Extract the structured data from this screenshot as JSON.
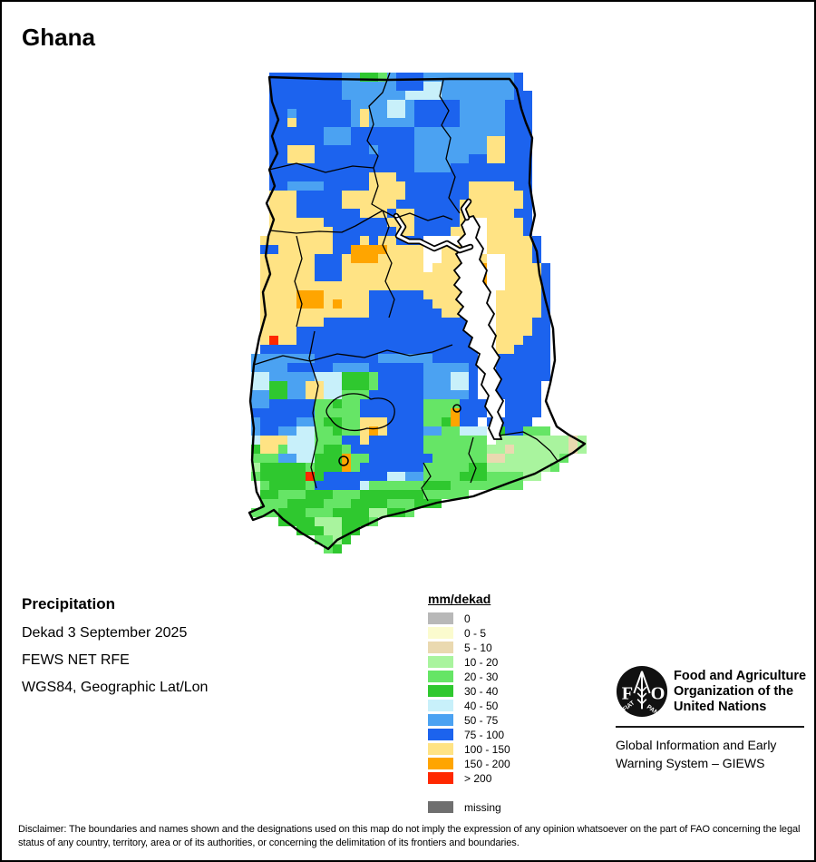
{
  "title": "Ghana",
  "info": {
    "heading": "Precipitation",
    "lines": [
      "Dekad 3 September 2025",
      "FEWS NET RFE",
      "WGS84, Geographic Lat/Lon"
    ]
  },
  "legend": {
    "title": "mm/dekad",
    "items": [
      {
        "label": "0",
        "color": "#b8b8b8"
      },
      {
        "label": "0 - 5",
        "color": "#fbfbce"
      },
      {
        "label": "5 - 10",
        "color": "#ead9b0"
      },
      {
        "label": "10 - 20",
        "color": "#a9f49e"
      },
      {
        "label": "20 - 30",
        "color": "#66e566"
      },
      {
        "label": "30 - 40",
        "color": "#2fc82f"
      },
      {
        "label": "40 - 50",
        "color": "#c8f0fa"
      },
      {
        "label": "50 - 75",
        "color": "#4ba2f2"
      },
      {
        "label": "75 - 100",
        "color": "#1c63ee"
      },
      {
        "label": "100 - 150",
        "color": "#ffe384"
      },
      {
        "label": "150 - 200",
        "color": "#ffa500"
      },
      {
        "label": "> 200",
        "color": "#ff2800"
      }
    ],
    "missing": {
      "label": "missing",
      "color": "#6f6f6f"
    }
  },
  "fao": {
    "logo_letters": [
      "F",
      "O"
    ],
    "logo_motto": [
      "FIAT",
      "PANIS"
    ],
    "org_lines": [
      "Food and Agriculture",
      "Organization of the",
      "United Nations"
    ],
    "giews_lines": [
      "Global Information and Early",
      "Warning System – GIEWS"
    ]
  },
  "disclaimer": "Disclaimer: The boundaries and names shown and the designations used on this map do not imply the expression of any opinion whatsoever on the part of FAO concerning the legal status of any country, territory, area or of its authorities, or concerning the delimitation of its frontiers and boundaries.",
  "map": {
    "region": "Ghana precipitation raster (mm/dekad)",
    "grid": {
      "cell": 10,
      "cols": 38,
      "rows": [
        "...BBBBBBBBLLGGMLBBBLLLLLLLLLLB.......",
        "...BBBBBBBBLLLLLLBBBCCLLLLLLLLB.......",
        "...BBBBBBBBLLLLLLLCCCCLLLLLLLLBB......",
        "...BBBBBBBBBLLLLCCLBBBBBLLLLLBBB......",
        "...BBLBBBBBBLYLLCCLBBBBBLLLLLBBB......",
        "...BBYBBBBBBLYLLLLLBBBBBLLLLLBBB......",
        "...BBBBBBLLLBBBBBBBLLLLLLLLLLBBB......",
        "...BBBBBBLLLBBBBBBBLLLLLLLLYYBBB......",
        "...BBYYYBBBBBBLBBBBLLLLLLLLYYBBB......",
        "...BBYYYBBBBBBBBBBBLLLLLLBBYYBBB......",
        "...BBBBBBBBBBBBBBBBLLLLBBBBBBBBB......",
        "...BBBBBBBBBBBYYYBBBBBBBBBBBBBBB......",
        "...BBLLLLBBBBBYYYYBBBBBBBYYYYYBB......",
        "...YYYBBBBBYYYYYYYBBBBBBBYYYYYYB......",
        "...YYYBBBBBYYYYYYBBBBBBBYYYYYYYB......",
        "...YYYBBBBBBBYYYBYYBBBBBYYYYYYBB......",
        "...YYYYYYBBBBBBBYYYBBBBBY##YYYYB......",
        "...YYYYYYYBBBBBBBYYBBBBYY##YYYYB......",
        "..YYYYYYYYBBBYBYYBBB####Y##YYYYYB.....",
        "..BBYYYYYYBBOOOOYYYY##YYY##YYYYYB.....",
        "..YYYYYYBBBYOOOYYYYY##YYYYY##YYYB.....",
        "..YYYYYYBBBYYYYYYYYY#YYYOOO##YYYYB....",
        "..YYYYYYBBBYYYYYYYYYYYYYOOO##YYYYB....",
        "..YYYYYYYYYYYYYYYYYYYYYYYOO##YYYYB....",
        "..YYYYOOOYYYYYBBBBBBYYYYYY##YYYYYB....",
        "..YYYYOOOYOYYYBBBBBBBYYYYY##YYYYYB....",
        "..YYYYYYYYYYYYBBBBBBBBYYBB##YYYYYB....",
        "..YYYYYYYBBBBBBBBBBBBBBBBB##YYYYBB....",
        "..YYYYBBBBBBBBBBBBBBBBBBBB##YYYYBB....",
        "..YRYYBBBBBBBBBBBBBBBBBBBB##YYYBBB....",
        "..BBBBBBBBBBBBBBBBBBBBBBBB##YYBBBB....",
        ".LLLLLLLBBBBBBBLLLLLLBBBBB##BBBBBB....",
        ".LLLLBBBBBLLLLBBBBBBLLLLLB##BBBBBB....",
        ".CCLLLLLCCCGGGMBBBBBLLLCCB##BBBBBB....",
        ".CCGGLLYYCCGGGMBBBBBLLLCCB##BBBBB.....",
        ".LLGGLLYYCCMMMBBBBBBLLLLLB##BBBBB.....",
        ".LLBBBBBMMGMMBBBBBBBMMMMBBB##BBBB.....",
        ".BBBBBBBMMMMMBBBBBBBMMMOBBB##BBBB.....",
        ".LBBBBLLMGGMMYYYBBBBMMGOBB#BBBBB......",
        ".LBBLLCCMMGMMYOYBBBBLLMMCCC#GBBMMM....",
        ".CYYYCCCMMMBBYBBBBBBMMMMMMM#PPPPPPPPTP",
        ".GYYMCCCMGGMBBBBBBBBMMMMMMMPPTPPPPPPTP",
        ".MMMLLCCGGGOMMBBBBBBBMMMMMMTTPPPPPPM..",
        ".PGGGGGMGGGOMBBBBBBBMMMMMGGPPPPPPPM...",
        ".MGGGGGRGBBBBBBBCCLLMMMMGGGMMMMPP.....",
        "..MGGGGMBBBBBCMMMMMMGGGMMMMMMMM.......",
        "..GGMMMGGGMMMGGGGGGGMMMMM.............",
        "..MMMGGGGMMMGGGGMMMGGG................",
        ".MMMGGGMMMGGGGPPGGM...................",
        "....GGGGPPPGGGM.......................",
        "......GGGPPGG.........................",
        "........MMPG..........................",
        ".........MG..........................."
      ],
      "palette": {
        "B": "#1c63ee",
        "L": "#4ba2f2",
        "C": "#c8f0fa",
        "Y": "#ffe384",
        "O": "#ffa500",
        "R": "#ff2800",
        "G": "#2fc82f",
        "M": "#66e566",
        "P": "#a9f49e",
        "T": "#ead9b0",
        "W": "#fbfbce",
        "0": "#b8b8b8",
        "#": "#ffffff"
      }
    }
  }
}
